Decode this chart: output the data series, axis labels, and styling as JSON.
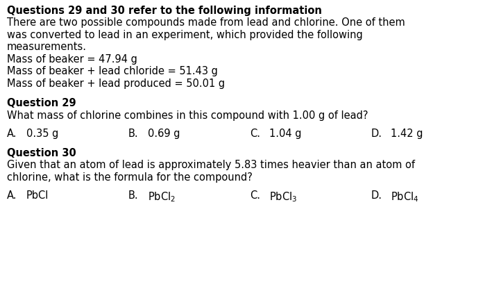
{
  "background_color": "#ffffff",
  "title_line": "Questions 29 and 30 refer to the following information",
  "intro_lines": [
    "There are two possible compounds made from lead and chlorine. One of them",
    "was converted to lead in an experiment, which provided the following",
    "measurements.",
    "Mass of beaker = 47.94 g",
    "Mass of beaker + lead chloride = 51.43 g",
    "Mass of beaker + lead produced = 50.01 g"
  ],
  "q29_header": "Question 29",
  "q29_text": "What mass of chlorine combines in this compound with 1.00 g of lead?",
  "q29_options_labels": [
    "A.",
    "B.",
    "C.",
    "D."
  ],
  "q29_options_values": [
    "0.35 g",
    "0.69 g",
    "1.04 g",
    "1.42 g"
  ],
  "q30_header": "Question 30",
  "q30_line1": "Given that an atom of lead is approximately 5.83 times heavier than an atom of",
  "q30_line2": "chlorine, what is the formula for the compound?",
  "q30_options_labels": [
    "A.",
    "B.",
    "C.",
    "D."
  ],
  "q30_options_values": [
    "PbCl",
    "PbCl$_2$",
    "PbCl$_3$",
    "PbCl$_4$"
  ],
  "font_size": 10.5,
  "text_color": "#000000"
}
